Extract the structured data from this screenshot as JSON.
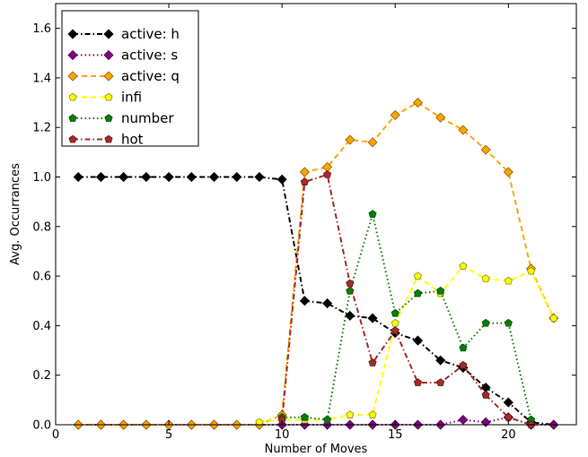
{
  "chart_data": {
    "type": "line",
    "xlabel": "Number of Moves",
    "ylabel": "Avg. Occurrances",
    "xlim": [
      0,
      23
    ],
    "ylim": [
      0,
      1.7
    ],
    "xticks": [
      0,
      5,
      10,
      15,
      20
    ],
    "yticks": [
      0.0,
      0.2,
      0.4,
      0.6,
      0.8,
      1.0,
      1.2,
      1.4,
      1.6
    ],
    "xtick_labels": [
      "0",
      "5",
      "10",
      "15",
      "20"
    ],
    "ytick_labels": [
      "0.0",
      "0.2",
      "0.4",
      "0.6",
      "0.8",
      "1.0",
      "1.2",
      "1.4",
      "1.6"
    ],
    "grid": false,
    "legend_position": "top-left",
    "series": [
      {
        "name": "active: h",
        "color": "#000000",
        "marker": "diamond",
        "linestyle": "dashdot",
        "x": [
          1,
          2,
          3,
          4,
          5,
          6,
          7,
          8,
          9,
          10,
          11,
          12,
          13,
          14,
          15,
          16,
          17,
          18,
          19,
          20,
          21,
          22
        ],
        "y": [
          1.0,
          1.0,
          1.0,
          1.0,
          1.0,
          1.0,
          1.0,
          1.0,
          1.0,
          0.99,
          0.5,
          0.49,
          0.44,
          0.43,
          0.37,
          0.34,
          0.26,
          0.23,
          0.15,
          0.09,
          0.01,
          0.0
        ]
      },
      {
        "name": "active: s",
        "color": "#800080",
        "marker": "diamond",
        "linestyle": "dotted",
        "x": [
          1,
          2,
          3,
          4,
          5,
          6,
          7,
          8,
          9,
          10,
          11,
          12,
          13,
          14,
          15,
          16,
          17,
          18,
          19,
          20,
          21,
          22
        ],
        "y": [
          0,
          0,
          0,
          0,
          0,
          0,
          0,
          0,
          0,
          0,
          0,
          0,
          0,
          0,
          0,
          0,
          0,
          0.02,
          0.01,
          0.03,
          0.0,
          0.0
        ]
      },
      {
        "name": "active: q",
        "color": "#FFA500",
        "marker": "diamond",
        "linestyle": "dashed",
        "x": [
          1,
          2,
          3,
          4,
          5,
          6,
          7,
          8,
          9,
          10,
          11,
          12,
          13,
          14,
          15,
          16,
          17,
          18,
          19,
          20,
          21,
          22
        ],
        "y": [
          0,
          0,
          0,
          0,
          0,
          0,
          0,
          0,
          0,
          0.04,
          1.02,
          1.04,
          1.15,
          1.14,
          1.25,
          1.3,
          1.24,
          1.19,
          1.11,
          1.02,
          0.63,
          0.43
        ]
      },
      {
        "name": "infi",
        "color": "#FFFF00",
        "marker": "pentagon",
        "linestyle": "dashed",
        "x": [
          9,
          10,
          11,
          12,
          13,
          14,
          15,
          16,
          17,
          18,
          19,
          20,
          21,
          22
        ],
        "y": [
          0.01,
          0.02,
          0.02,
          0.02,
          0.04,
          0.04,
          0.41,
          0.6,
          0.53,
          0.64,
          0.59,
          0.58,
          0.62,
          0.43
        ]
      },
      {
        "name": "number",
        "color": "#008000",
        "marker": "pentagon",
        "linestyle": "dotted",
        "x": [
          10,
          11,
          12,
          13,
          14,
          15,
          16,
          17,
          18,
          19,
          20,
          21
        ],
        "y": [
          0.03,
          0.03,
          0.02,
          0.54,
          0.85,
          0.45,
          0.53,
          0.54,
          0.31,
          0.41,
          0.41,
          0.02
        ]
      },
      {
        "name": "hot",
        "color": "#A52A2A",
        "marker": "pentagon",
        "linestyle": "dashdot",
        "x": [
          10,
          11,
          12,
          13,
          14,
          15,
          16,
          17,
          18,
          19,
          20,
          21
        ],
        "y": [
          0.02,
          0.98,
          1.01,
          0.57,
          0.25,
          0.38,
          0.17,
          0.17,
          0.24,
          0.12,
          0.03,
          0.0
        ]
      }
    ]
  }
}
